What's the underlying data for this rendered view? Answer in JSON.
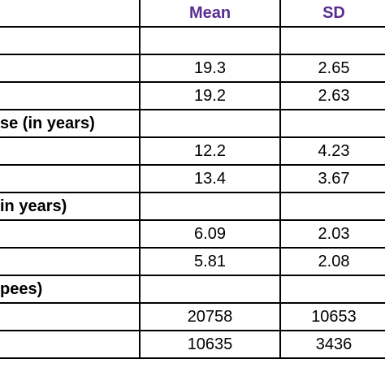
{
  "table": {
    "headers": [
      "",
      "Mean",
      "SD"
    ],
    "rows": [
      {
        "label": "",
        "mean": "",
        "sd": ""
      },
      {
        "label": "",
        "mean": "19.3",
        "sd": "2.65"
      },
      {
        "label": "",
        "mean": "19.2",
        "sd": "2.63"
      },
      {
        "label": "se (in years)",
        "mean": "",
        "sd": ""
      },
      {
        "label": "",
        "mean": "12.2",
        "sd": "4.23"
      },
      {
        "label": "",
        "mean": "13.4",
        "sd": "3.67"
      },
      {
        "label": "in years)",
        "mean": "",
        "sd": ""
      },
      {
        "label": "",
        "mean": "6.09",
        "sd": "2.03"
      },
      {
        "label": "",
        "mean": "5.81",
        "sd": "2.08"
      },
      {
        "label": "pees)",
        "mean": "",
        "sd": ""
      },
      {
        "label": "",
        "mean": "20758",
        "sd": "10653"
      },
      {
        "label": "",
        "mean": "10635",
        "sd": "3436"
      }
    ]
  },
  "colors": {
    "header_text": "#5b2d91",
    "border": "#000000",
    "body_text": "#000000"
  }
}
